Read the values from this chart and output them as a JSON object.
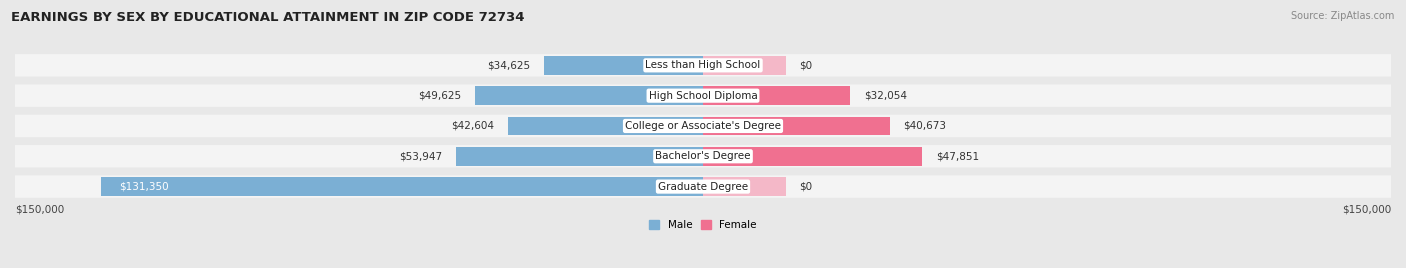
{
  "title": "EARNINGS BY SEX BY EDUCATIONAL ATTAINMENT IN ZIP CODE 72734",
  "source": "Source: ZipAtlas.com",
  "categories": [
    "Less than High School",
    "High School Diploma",
    "College or Associate's Degree",
    "Bachelor's Degree",
    "Graduate Degree"
  ],
  "male_values": [
    34625,
    49625,
    42604,
    53947,
    131350
  ],
  "female_values": [
    0,
    32054,
    40673,
    47851,
    0
  ],
  "male_labels": [
    "$34,625",
    "$49,625",
    "$42,604",
    "$53,947",
    "$131,350"
  ],
  "female_labels": [
    "$0",
    "$32,054",
    "$40,673",
    "$47,851",
    "$0"
  ],
  "male_color": "#7BAFD4",
  "female_color": "#F07090",
  "female_color_light": "#F4B8C8",
  "axis_max": 150000,
  "axis_label_left": "$150,000",
  "axis_label_right": "$150,000",
  "legend_male": "Male",
  "legend_female": "Female",
  "bg_color": "#e8e8e8",
  "row_bg_color": "#f4f4f4",
  "title_fontsize": 9.5,
  "source_fontsize": 7,
  "label_fontsize": 8,
  "axis_fontsize": 7.5
}
